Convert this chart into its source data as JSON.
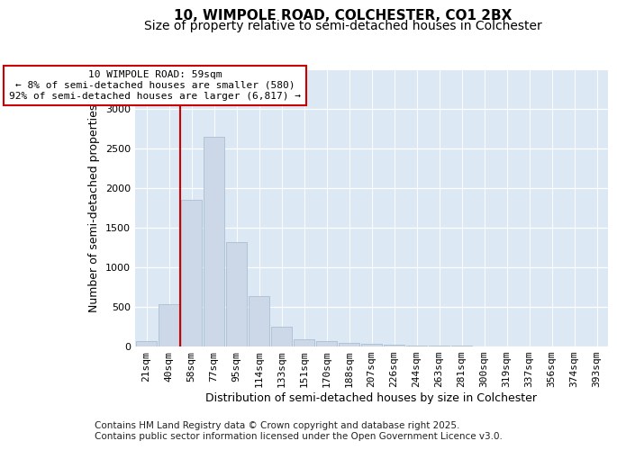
{
  "title1": "10, WIMPOLE ROAD, COLCHESTER, CO1 2BX",
  "title2": "Size of property relative to semi-detached houses in Colchester",
  "xlabel": "Distribution of semi-detached houses by size in Colchester",
  "ylabel": "Number of semi-detached properties",
  "categories": [
    "21sqm",
    "40sqm",
    "58sqm",
    "77sqm",
    "95sqm",
    "114sqm",
    "133sqm",
    "151sqm",
    "170sqm",
    "188sqm",
    "207sqm",
    "226sqm",
    "244sqm",
    "263sqm",
    "281sqm",
    "300sqm",
    "319sqm",
    "337sqm",
    "356sqm",
    "374sqm",
    "393sqm"
  ],
  "values": [
    65,
    530,
    1860,
    2650,
    1320,
    640,
    245,
    95,
    65,
    50,
    30,
    20,
    15,
    10,
    8,
    5,
    3,
    2,
    2,
    1,
    1
  ],
  "bar_color": "#ccd8e8",
  "bar_edge_color": "#a8bfd0",
  "vline_x_index": 2,
  "vline_color": "#cc0000",
  "annotation_line1": "10 WIMPOLE ROAD: 59sqm",
  "annotation_line2": "← 8% of semi-detached houses are smaller (580)",
  "annotation_line3": "92% of semi-detached houses are larger (6,817) →",
  "annotation_box_color": "#cc0000",
  "ylim": [
    0,
    3500
  ],
  "yticks": [
    0,
    500,
    1000,
    1500,
    2000,
    2500,
    3000,
    3500
  ],
  "footer": "Contains HM Land Registry data © Crown copyright and database right 2025.\nContains public sector information licensed under the Open Government Licence v3.0.",
  "bg_color": "#ffffff",
  "plot_bg_color": "#dce8f4",
  "title1_fontsize": 11,
  "title2_fontsize": 10,
  "xlabel_fontsize": 9,
  "ylabel_fontsize": 9,
  "tick_fontsize": 8,
  "annot_fontsize": 8,
  "footer_fontsize": 7.5
}
